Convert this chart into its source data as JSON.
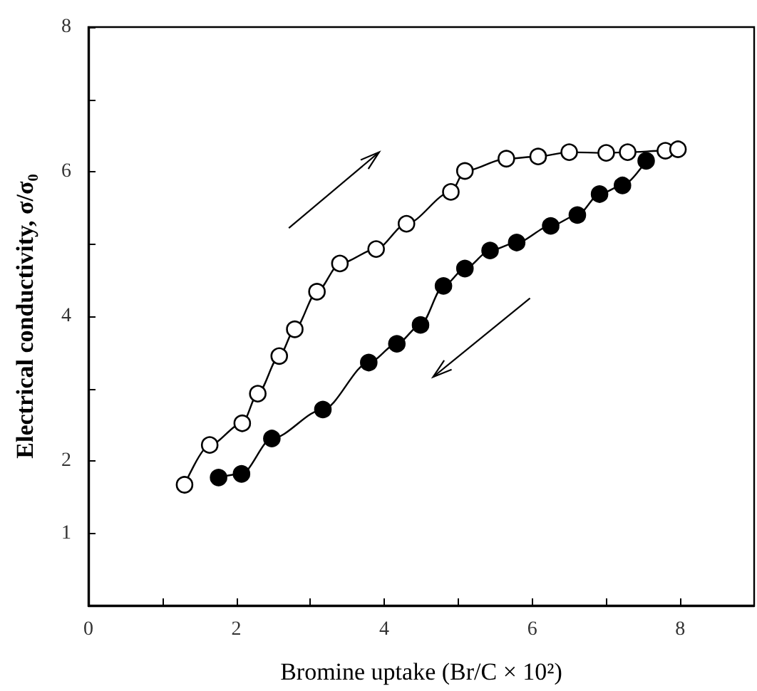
{
  "chart_data": {
    "type": "line",
    "xlabel": "Bromine uptake (Br/C × 10²)",
    "ylabel": "Electrical conductivity, σ/σ₀",
    "xlim": [
      0,
      9
    ],
    "ylim": [
      0,
      8
    ],
    "xticks": [
      0,
      {
        "value": 1,
        "label": null
      },
      2,
      {
        "value": 3,
        "label": null
      },
      4,
      {
        "value": 5,
        "label": null
      },
      6,
      {
        "value": 7,
        "label": null
      },
      8
    ],
    "yticks": [
      1,
      2,
      {
        "value": 3,
        "label": null
      },
      4,
      {
        "value": 5,
        "label": null
      },
      6,
      {
        "value": 7,
        "label": null
      },
      8
    ],
    "marker": "circle",
    "grid": false,
    "series": [
      {
        "color": "#ffffff",
        "x": [
          1.3,
          1.64,
          2.08,
          2.29,
          2.58,
          2.79,
          3.09,
          3.4,
          3.89,
          4.3,
          4.9,
          5.09,
          5.65,
          6.08,
          6.5,
          7.0,
          7.29,
          7.8,
          7.97
        ],
        "values": [
          1.67,
          2.22,
          2.52,
          2.93,
          3.45,
          3.82,
          4.34,
          4.73,
          4.93,
          5.28,
          5.72,
          6.01,
          6.18,
          6.21,
          6.27,
          6.26,
          6.27,
          6.29,
          6.31
        ]
      },
      {
        "color": "#000000",
        "x": [
          1.76,
          2.07,
          2.48,
          3.17,
          3.79,
          4.17,
          4.49,
          4.8,
          5.09,
          5.43,
          5.79,
          6.25,
          6.61,
          6.91,
          7.22,
          7.54
        ],
        "values": [
          1.77,
          1.82,
          2.31,
          2.71,
          3.36,
          3.62,
          3.88,
          4.42,
          4.66,
          4.91,
          5.02,
          5.25,
          5.4,
          5.69,
          5.81,
          6.15
        ]
      }
    ]
  }
}
